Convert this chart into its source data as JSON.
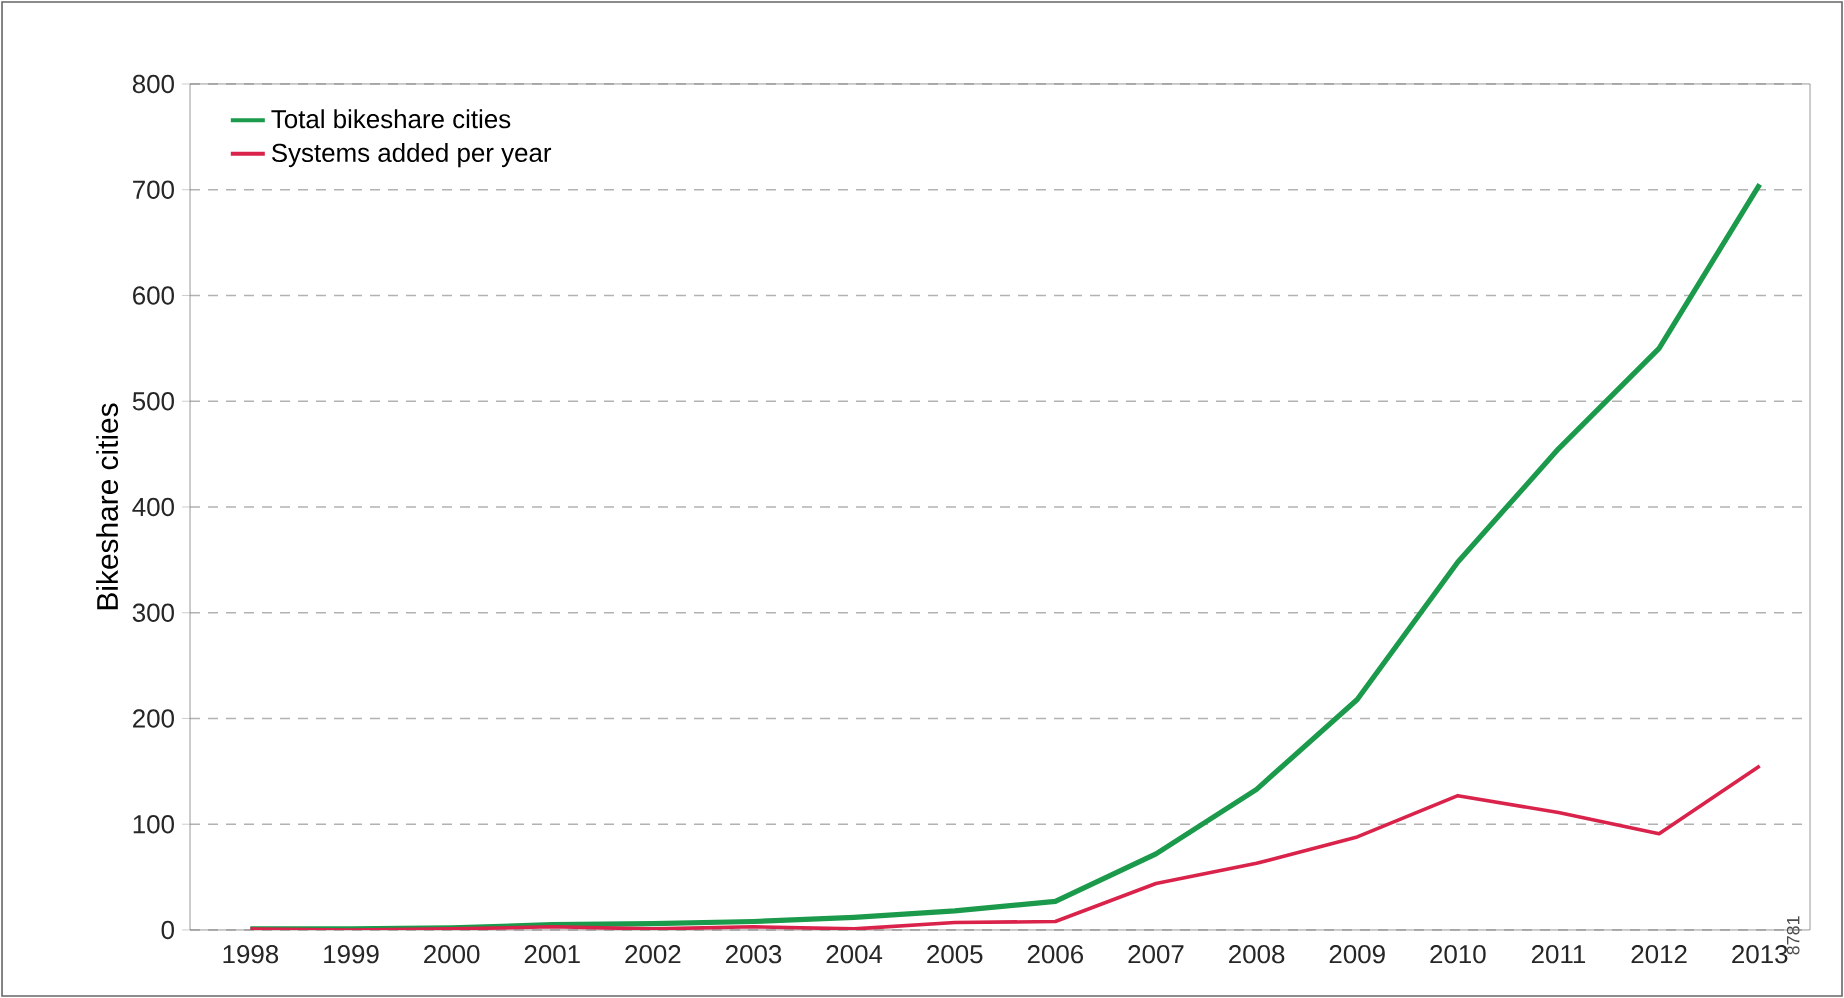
{
  "chart_data": {
    "type": "line",
    "ylabel": "Bikeshare cities",
    "categories": [
      "1998",
      "1999",
      "2000",
      "2001",
      "2002",
      "2003",
      "2004",
      "2005",
      "2006",
      "2007",
      "2008",
      "2009",
      "2010",
      "2011",
      "2012",
      "2013"
    ],
    "series": [
      {
        "name": "Total bikeshare cities",
        "color": "#1a9a4a",
        "values": [
          1,
          1,
          2,
          5,
          6,
          8,
          12,
          18,
          27,
          72,
          133,
          218,
          348,
          455,
          550,
          705
        ]
      },
      {
        "name": "Systems added per year",
        "color": "#d9234b",
        "values": [
          1,
          0,
          1,
          3,
          1,
          3,
          1,
          7,
          8,
          44,
          63,
          88,
          127,
          111,
          91,
          155
        ]
      }
    ],
    "ylim": [
      0,
      800
    ],
    "yticks": [
      0,
      100,
      200,
      300,
      400,
      500,
      600,
      700,
      800
    ],
    "grid": "y",
    "legend": "top left",
    "marker": "none",
    "line_style": "solid",
    "annotations": [
      "8781"
    ]
  }
}
